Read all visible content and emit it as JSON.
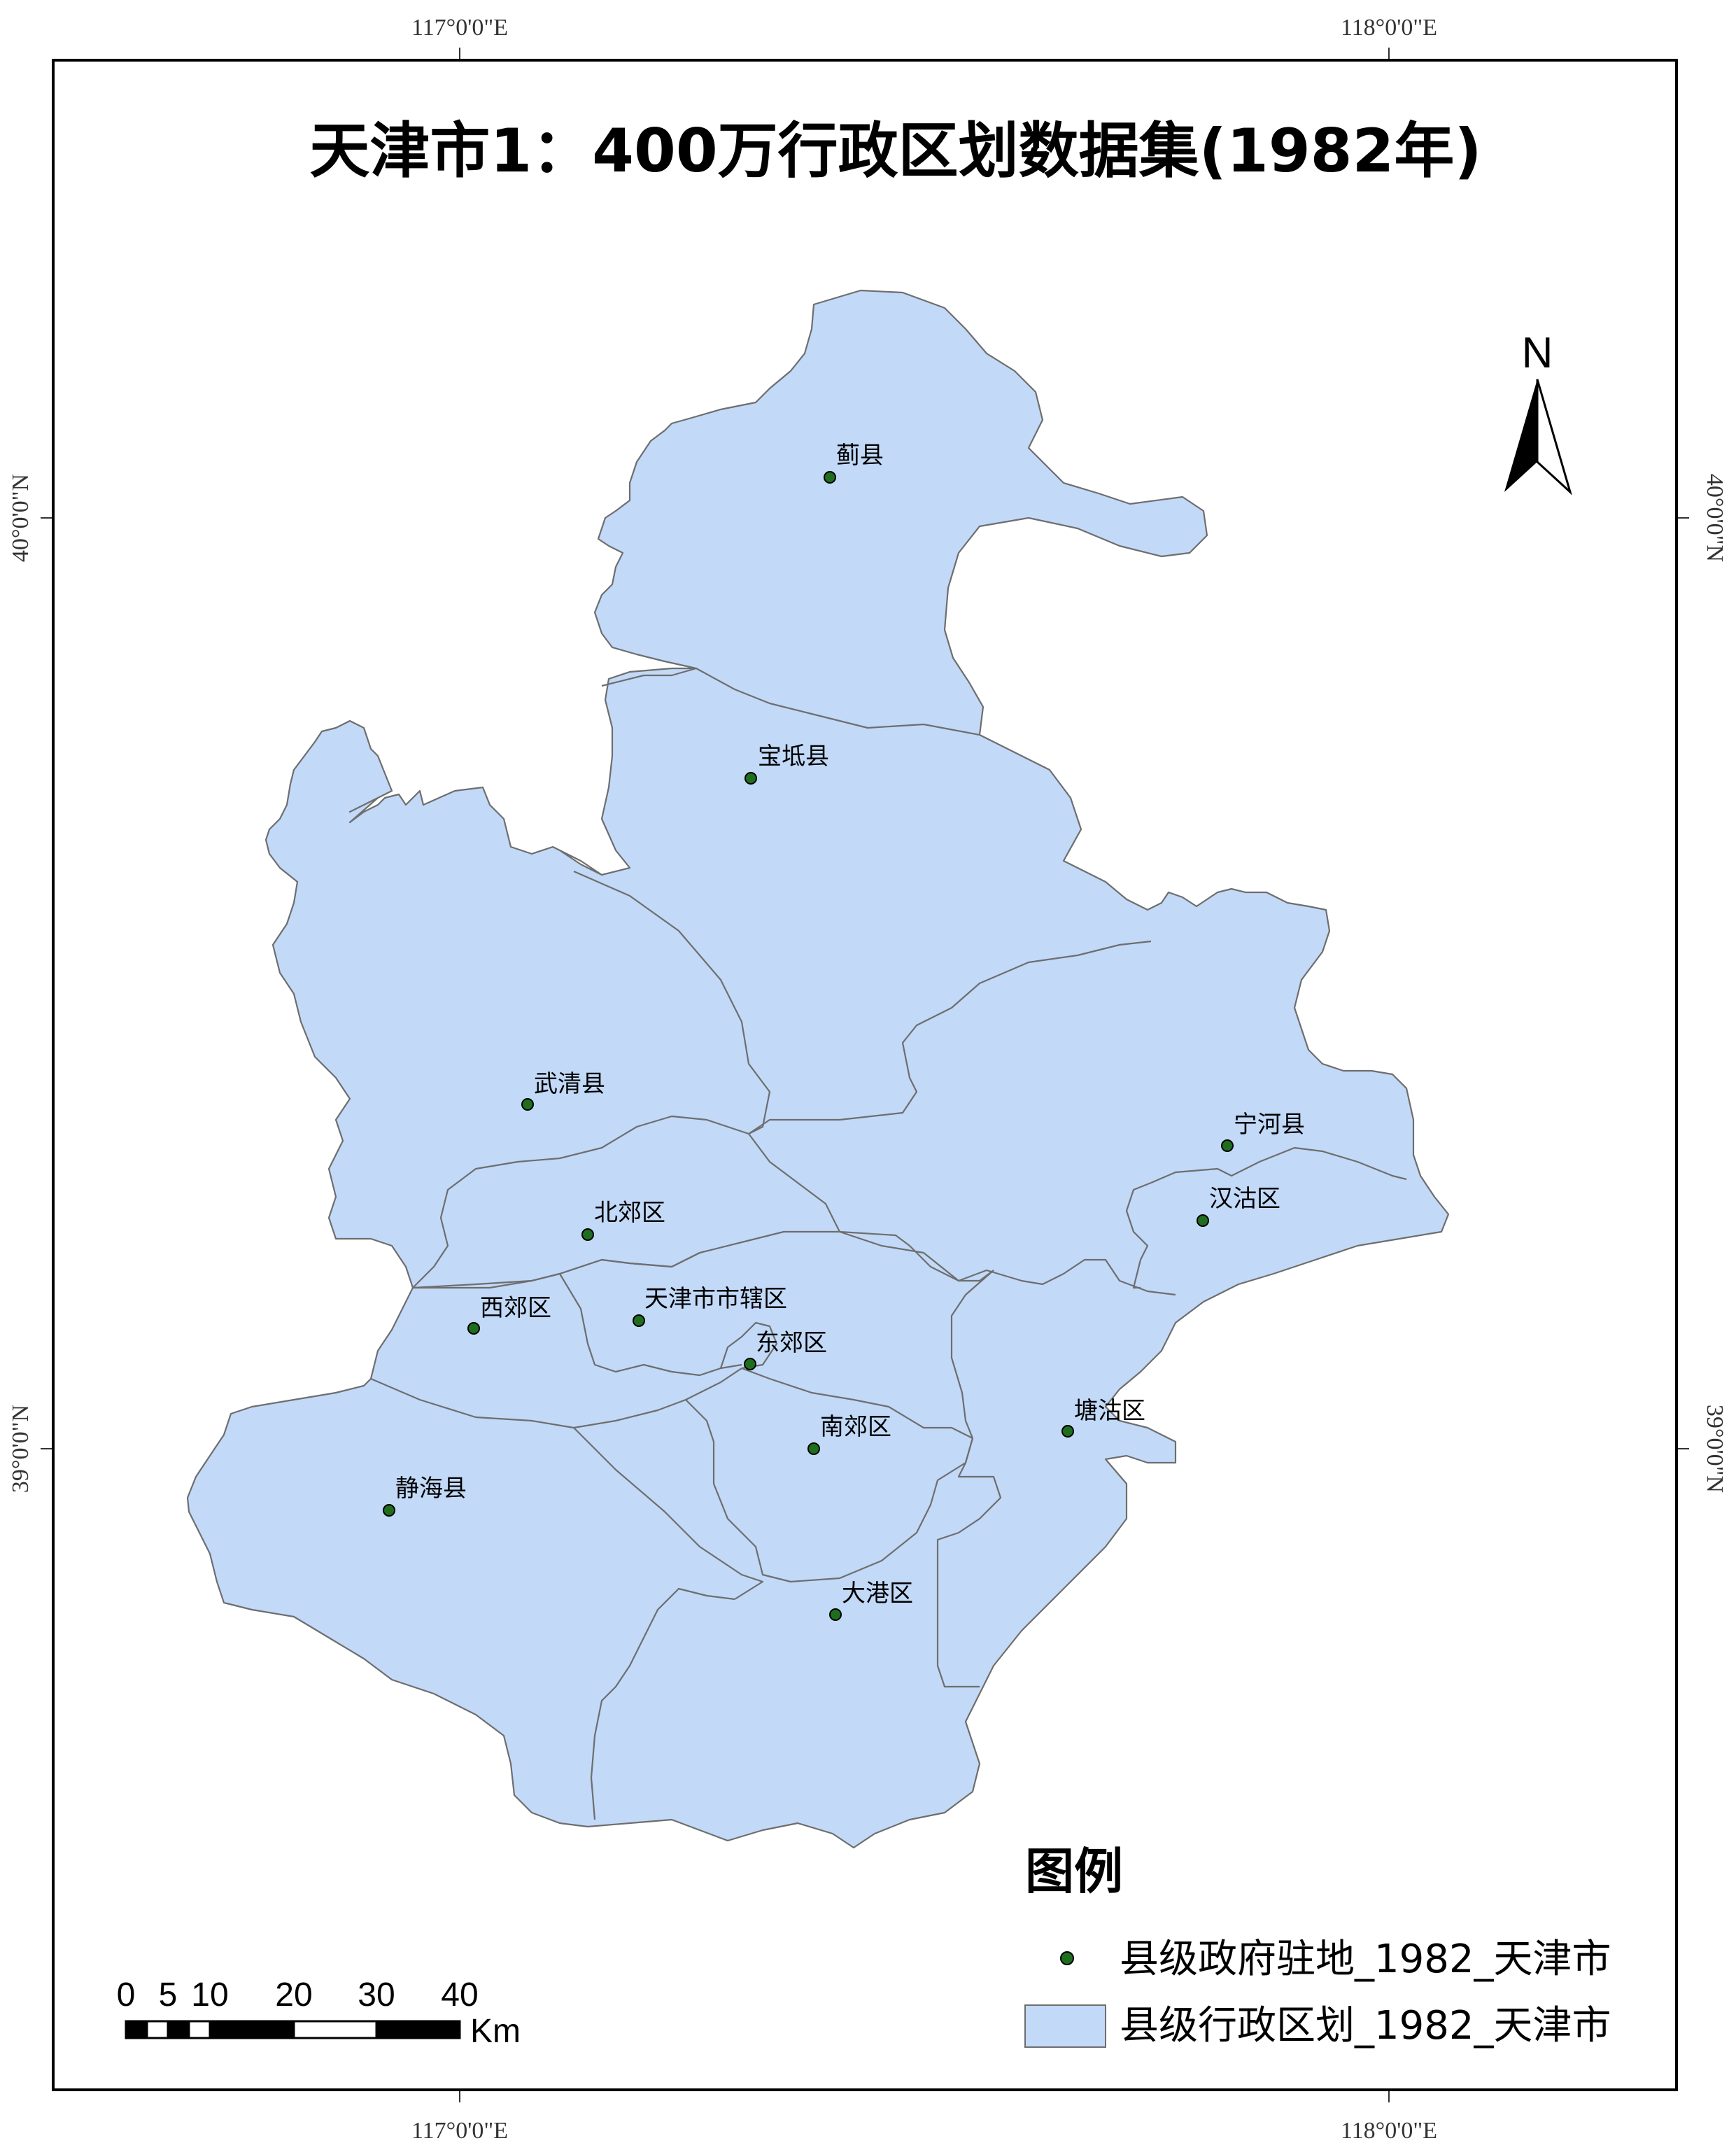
{
  "title": "天津市1：400万行政区划数据集(1982年)",
  "graticule": {
    "lon_ticks": [
      "117°0'0\"E",
      "118°0'0\"E"
    ],
    "lat_ticks": [
      "40°0'0\"N",
      "39°0'0\"N"
    ]
  },
  "north_arrow": {
    "label": "N",
    "icon": "north-arrow-icon"
  },
  "county_seats": [
    {
      "name": "蓟县"
    },
    {
      "name": "宝坻县"
    },
    {
      "name": "武清县"
    },
    {
      "name": "宁河县"
    },
    {
      "name": "汉沽区"
    },
    {
      "name": "北郊区"
    },
    {
      "name": "西郊区"
    },
    {
      "name": "天津市市辖区"
    },
    {
      "name": "东郊区"
    },
    {
      "name": "南郊区"
    },
    {
      "name": "塘沽区"
    },
    {
      "name": "静海县"
    },
    {
      "name": "大港区"
    }
  ],
  "legend": {
    "title": "图例",
    "items": [
      {
        "label": "县级政府驻地_1982_天津市",
        "symbol": "green-dot",
        "color": "#1f6e1f"
      },
      {
        "label": "县级行政区划_1982_天津市",
        "symbol": "fill-box",
        "color": "#c2d9f8"
      }
    ]
  },
  "scale_bar": {
    "labels": [
      "0",
      "5",
      "10",
      "20",
      "30",
      "40"
    ],
    "unit": "Km"
  },
  "colors": {
    "district_fill": "#c2d9f8",
    "district_stroke": "#6e6e6e",
    "seat_dot": "#1f6e1f"
  }
}
